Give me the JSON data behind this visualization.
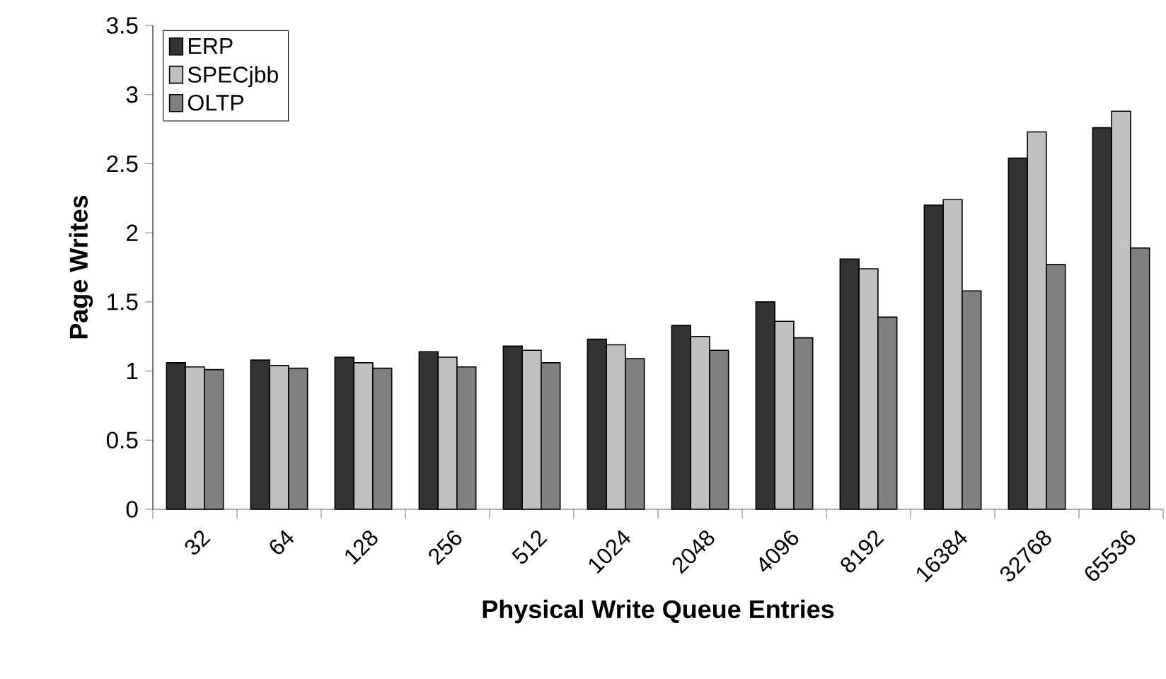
{
  "chart_data": {
    "type": "bar",
    "xlabel": "Physical Write Queue Entries",
    "ylabel": "Page Writes",
    "categories": [
      "32",
      "64",
      "128",
      "256",
      "512",
      "1024",
      "2048",
      "4096",
      "8192",
      "16384",
      "32768",
      "65536"
    ],
    "series": [
      {
        "name": "ERP",
        "color": "#333333",
        "values": [
          1.06,
          1.08,
          1.1,
          1.14,
          1.18,
          1.23,
          1.33,
          1.5,
          1.81,
          2.2,
          2.54,
          2.76
        ]
      },
      {
        "name": "SPECjbb",
        "color": "#c0c0c0",
        "values": [
          1.03,
          1.04,
          1.06,
          1.1,
          1.15,
          1.19,
          1.25,
          1.36,
          1.74,
          2.24,
          2.73,
          2.88
        ]
      },
      {
        "name": "OLTP",
        "color": "#808080",
        "values": [
          1.01,
          1.02,
          1.02,
          1.03,
          1.06,
          1.09,
          1.15,
          1.24,
          1.39,
          1.58,
          1.77,
          1.89
        ]
      }
    ],
    "ylim": [
      0,
      3.5
    ],
    "yticks": [
      0,
      0.5,
      1,
      1.5,
      2,
      2.5,
      3,
      3.5
    ],
    "legend": "top left",
    "grid": false
  }
}
